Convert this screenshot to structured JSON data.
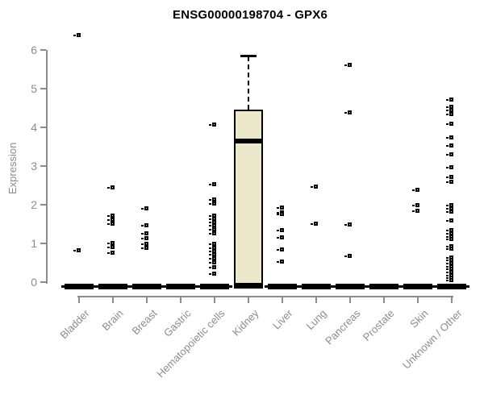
{
  "chart_data": {
    "type": "boxplot",
    "title": "ENSG00000198704 - GPX6",
    "ylabel": "Expression",
    "xlabel": "",
    "ylim": [
      0,
      6
    ],
    "yticks": [
      0,
      1,
      2,
      3,
      4,
      5,
      6
    ],
    "grid": false,
    "legend": false,
    "axis_color": "#8c8c8c",
    "box_fill_color": "#ECE8CC",
    "data_color": "#000000",
    "categories": [
      "Bladder",
      "Brain",
      "Breast",
      "Gastric",
      "Hematopoietic cells",
      "Kidney",
      "Liver",
      "Lung",
      "Pancreas",
      "Prostate",
      "Skin",
      "Unknown / Other"
    ],
    "boxes": [
      {
        "category": "Bladder",
        "q1": 0,
        "median": 0,
        "q3": 0,
        "whisker_low": 0,
        "whisker_high": 0,
        "outliers": [
          6.37,
          0.82
        ]
      },
      {
        "category": "Brain",
        "q1": 0,
        "median": 0,
        "q3": 0,
        "whisker_low": 0,
        "whisker_high": 0,
        "outliers": [
          2.44,
          1.7,
          1.6,
          1.5,
          1.0,
          0.9,
          0.76
        ]
      },
      {
        "category": "Breast",
        "q1": 0,
        "median": 0,
        "q3": 0,
        "whisker_low": 0,
        "whisker_high": 0,
        "outliers": [
          1.9,
          1.45,
          1.25,
          1.12,
          0.97,
          0.88
        ]
      },
      {
        "category": "Gastric",
        "q1": 0,
        "median": 0,
        "q3": 0,
        "whisker_low": 0,
        "whisker_high": 0,
        "outliers": []
      },
      {
        "category": "Hematopoietic cells",
        "q1": 0,
        "median": 0,
        "q3": 0,
        "whisker_low": 0,
        "whisker_high": 0,
        "outliers": [
          4.06,
          2.52,
          2.12,
          2.03,
          1.7,
          1.63,
          1.55,
          1.45,
          1.35,
          1.26,
          0.97,
          0.88,
          0.79,
          0.7,
          0.6,
          0.5,
          0.37,
          0.21
        ]
      },
      {
        "category": "Kidney",
        "q1": 0,
        "median": 3.65,
        "q3": 4.46,
        "whisker_low": 0,
        "whisker_high": 5.83,
        "outliers": []
      },
      {
        "category": "Liver",
        "q1": 0,
        "median": 0,
        "q3": 0,
        "whisker_low": 0,
        "whisker_high": 0,
        "outliers": [
          1.92,
          1.8,
          1.74,
          1.33,
          1.15,
          0.83,
          0.52
        ]
      },
      {
        "category": "Lung",
        "q1": 0,
        "median": 0,
        "q3": 0,
        "whisker_low": 0,
        "whisker_high": 0,
        "outliers": [
          2.45,
          1.5
        ]
      },
      {
        "category": "Pancreas",
        "q1": 0,
        "median": 0,
        "q3": 0,
        "whisker_low": 0,
        "whisker_high": 0,
        "outliers": [
          5.6,
          4.38,
          1.48,
          0.67
        ]
      },
      {
        "category": "Prostate",
        "q1": 0,
        "median": 0,
        "q3": 0,
        "whisker_low": 0,
        "whisker_high": 0,
        "outliers": []
      },
      {
        "category": "Skin",
        "q1": 0,
        "median": 0,
        "q3": 0,
        "whisker_low": 0,
        "whisker_high": 0,
        "outliers": [
          2.37,
          1.98,
          1.84
        ]
      },
      {
        "category": "Unknown / Other",
        "q1": 0,
        "median": 0,
        "q3": 0,
        "whisker_low": 0,
        "whisker_high": 0,
        "outliers": [
          4.71,
          4.53,
          4.43,
          4.33,
          4.08,
          3.73,
          3.52,
          3.3,
          2.95,
          2.7,
          2.58,
          1.98,
          1.89,
          1.81,
          1.58,
          1.33,
          1.25,
          1.17,
          1.1,
          0.92,
          0.85,
          0.63,
          0.56,
          0.48,
          0.4,
          0.33,
          0.25,
          0.17,
          0.1,
          0.04
        ]
      }
    ]
  }
}
